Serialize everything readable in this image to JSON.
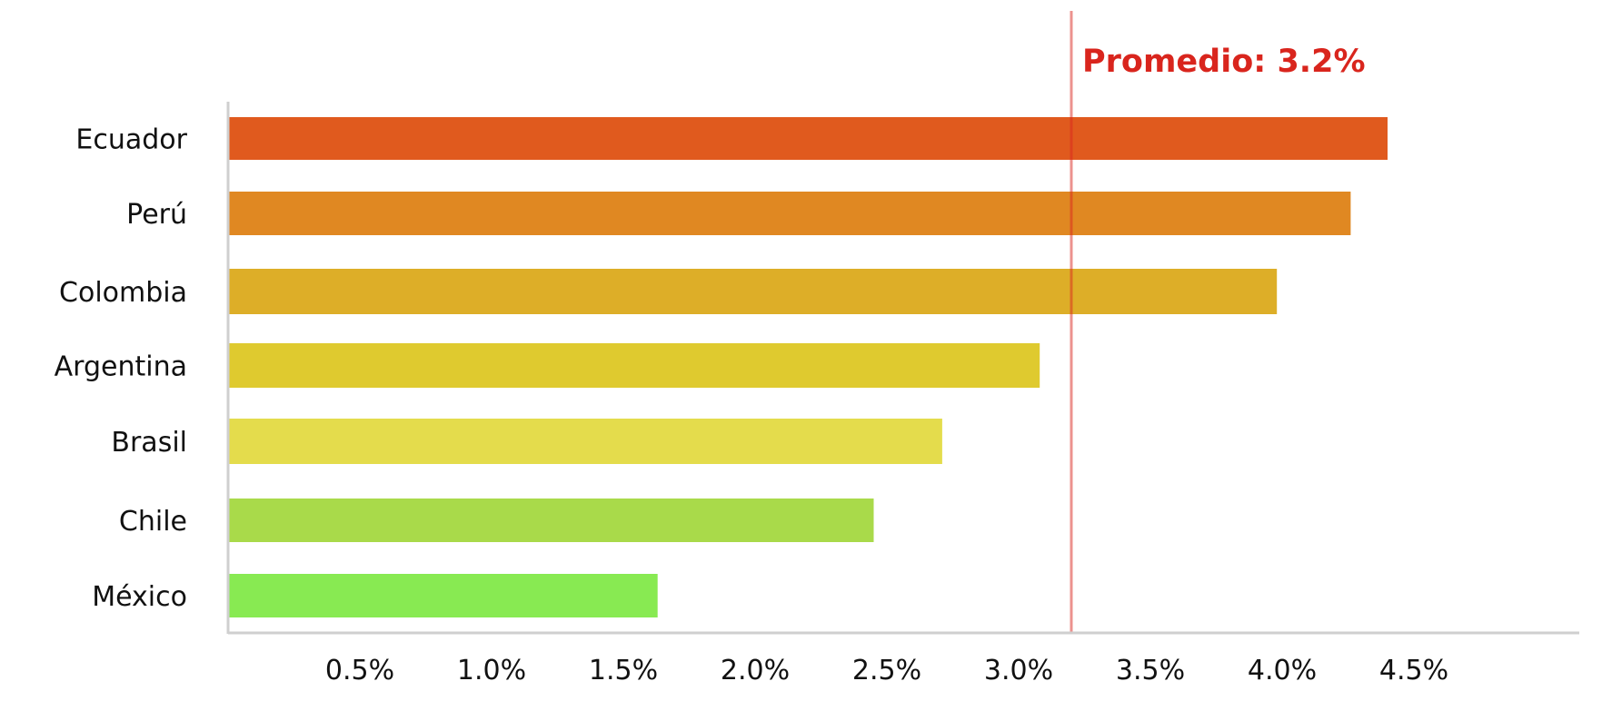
{
  "chart_data": {
    "type": "bar",
    "orientation": "horizontal",
    "categories": [
      "Ecuador",
      "Perú",
      "Colombia",
      "Argentina",
      "Brasil",
      "Chile",
      "México"
    ],
    "values": [
      4.4,
      4.26,
      3.98,
      3.08,
      2.71,
      2.45,
      1.63
    ],
    "colors": [
      "#e05a1e",
      "#e08822",
      "#ddae28",
      "#dfca2f",
      "#e4dc4c",
      "#a9da4a",
      "#88ea52"
    ],
    "title": "",
    "xlabel": "",
    "ylabel": "",
    "xlim": [
      0,
      5.05
    ],
    "x_ticks": [
      0.5,
      1.0,
      1.5,
      2.0,
      2.5,
      3.0,
      3.5,
      4.0,
      4.5
    ],
    "x_tick_labels": [
      "0.5%",
      "1.0%",
      "1.5%",
      "2.0%",
      "2.5%",
      "3.0%",
      "3.5%",
      "4.0%",
      "4.5%"
    ],
    "grid": false,
    "legend": "none",
    "reference_line": {
      "value": 3.2,
      "label": "Promedio: 3.2%",
      "color": "#d9251d"
    }
  }
}
